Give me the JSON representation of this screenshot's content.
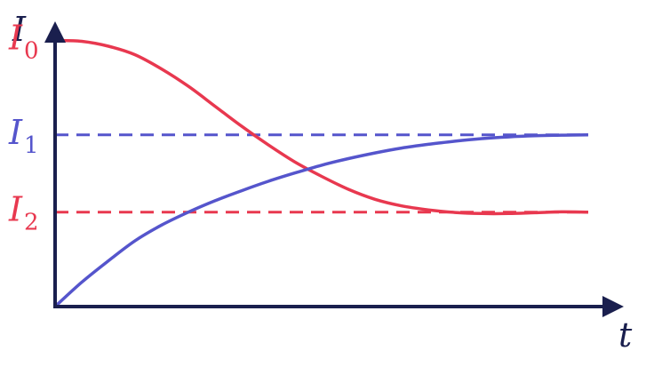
{
  "chart_data": {
    "type": "line",
    "xlabel": "t",
    "ylabel": "I",
    "xlim": [
      0,
      1
    ],
    "ylim": [
      0,
      1
    ],
    "colors": {
      "axis": "#1a1f4e",
      "red": "#e8384f",
      "blue": "#5555cc"
    },
    "levels": [
      {
        "id": "I0",
        "base": "I",
        "sub": "0",
        "value": 0.93,
        "color": "#e8384f",
        "dashed": false
      },
      {
        "id": "I1",
        "base": "I",
        "sub": "1",
        "value": 0.6,
        "color": "#5555cc",
        "dashed": true
      },
      {
        "id": "I2",
        "base": "I",
        "sub": "2",
        "value": 0.33,
        "color": "#e8384f",
        "dashed": true
      }
    ],
    "series": [
      {
        "color": "#e8384f",
        "x": [
          0,
          0.05,
          0.1,
          0.15,
          0.2,
          0.25,
          0.3,
          0.35,
          0.4,
          0.45,
          0.5,
          0.55,
          0.6,
          0.65,
          0.7,
          0.75,
          0.8,
          0.85,
          0.9,
          0.95,
          1
        ],
        "y": [
          0.93,
          0.927,
          0.91,
          0.88,
          0.83,
          0.77,
          0.7,
          0.63,
          0.565,
          0.505,
          0.455,
          0.41,
          0.375,
          0.352,
          0.338,
          0.329,
          0.325,
          0.325,
          0.328,
          0.331,
          0.33
        ]
      },
      {
        "color": "#5555cc",
        "x": [
          0,
          0.05,
          0.1,
          0.15,
          0.2,
          0.25,
          0.3,
          0.35,
          0.4,
          0.45,
          0.5,
          0.55,
          0.6,
          0.65,
          0.7,
          0.75,
          0.8,
          0.85,
          0.9,
          0.95,
          1
        ],
        "y": [
          0,
          0.085,
          0.16,
          0.23,
          0.285,
          0.33,
          0.37,
          0.405,
          0.438,
          0.467,
          0.494,
          0.517,
          0.537,
          0.554,
          0.567,
          0.578,
          0.587,
          0.593,
          0.597,
          0.599,
          0.6
        ]
      }
    ]
  }
}
